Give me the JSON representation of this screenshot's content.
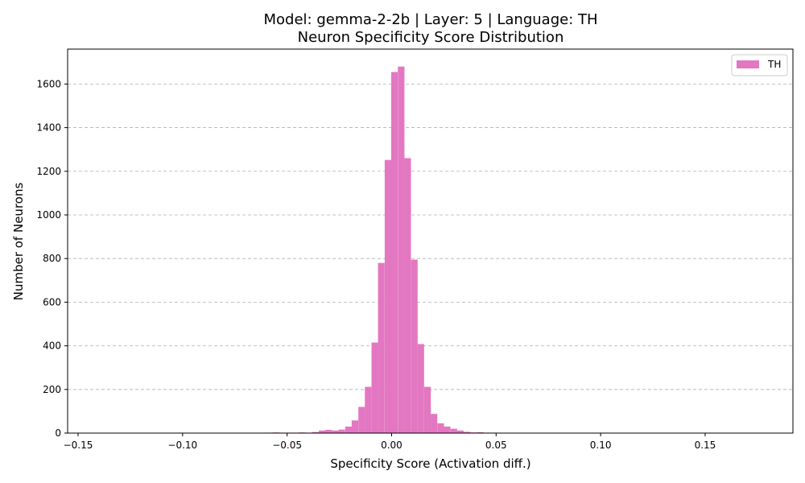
{
  "chart_data": {
    "type": "bar",
    "title_line1": "Model: gemma-2-2b | Layer: 5 | Language: TH",
    "title_line2": "Neuron Specificity Score Distribution",
    "xlabel": "Specificity Score (Activation diff.)",
    "ylabel": "Number of Neurons",
    "xlim": [
      -0.155,
      0.192
    ],
    "ylim": [
      0,
      1760
    ],
    "x_ticks": [
      -0.15,
      -0.1,
      -0.05,
      0.0,
      0.05,
      0.1,
      0.15
    ],
    "x_tick_labels": [
      "−0.15",
      "−0.10",
      "−0.05",
      "0.00",
      "0.05",
      "0.10",
      "0.15"
    ],
    "y_ticks": [
      0,
      200,
      400,
      600,
      800,
      1000,
      1200,
      1400,
      1600
    ],
    "y_tick_labels": [
      "0",
      "200",
      "400",
      "600",
      "800",
      "1000",
      "1200",
      "1400",
      "1600"
    ],
    "grid": "y-dashed",
    "legend_position": "top-right",
    "bar_color": "#e377c2",
    "bin_width": 0.00315,
    "series": [
      {
        "name": "TH",
        "bins": [
          [
            -0.1384,
            1
          ],
          [
            -0.1353,
            1
          ],
          [
            -0.1195,
            1
          ],
          [
            -0.1069,
            1
          ],
          [
            -0.0911,
            1
          ],
          [
            -0.0666,
            1
          ],
          [
            -0.06,
            2
          ],
          [
            -0.0569,
            3
          ],
          [
            -0.0537,
            2
          ],
          [
            -0.0506,
            2
          ],
          [
            -0.0474,
            2
          ],
          [
            -0.0443,
            3
          ],
          [
            -0.0411,
            2
          ],
          [
            -0.038,
            5
          ],
          [
            -0.0348,
            12
          ],
          [
            -0.0317,
            15
          ],
          [
            -0.0285,
            12
          ],
          [
            -0.0254,
            16
          ],
          [
            -0.0222,
            30
          ],
          [
            -0.0191,
            58
          ],
          [
            -0.0159,
            120
          ],
          [
            -0.0128,
            212
          ],
          [
            -0.0096,
            415
          ],
          [
            -0.0065,
            780
          ],
          [
            -0.0033,
            1252
          ],
          [
            -0.0002,
            1655
          ],
          [
            0.003,
            1680
          ],
          [
            0.0061,
            1260
          ],
          [
            0.0093,
            795
          ],
          [
            0.0124,
            408
          ],
          [
            0.0156,
            212
          ],
          [
            0.0187,
            88
          ],
          [
            0.0219,
            45
          ],
          [
            0.025,
            30
          ],
          [
            0.0282,
            20
          ],
          [
            0.0313,
            12
          ],
          [
            0.0345,
            6
          ],
          [
            0.0376,
            3
          ],
          [
            0.0408,
            4
          ],
          [
            0.0439,
            2
          ],
          [
            0.0471,
            2
          ],
          [
            0.0502,
            1
          ],
          [
            0.0565,
            1
          ],
          [
            0.0597,
            1
          ],
          [
            0.066,
            1
          ],
          [
            0.0754,
            1
          ],
          [
            0.0817,
            1
          ],
          [
            0.0912,
            1
          ],
          [
            0.0975,
            1
          ],
          [
            0.1227,
            1
          ],
          [
            0.129,
            1
          ],
          [
            0.1763,
            1
          ]
        ]
      }
    ]
  }
}
